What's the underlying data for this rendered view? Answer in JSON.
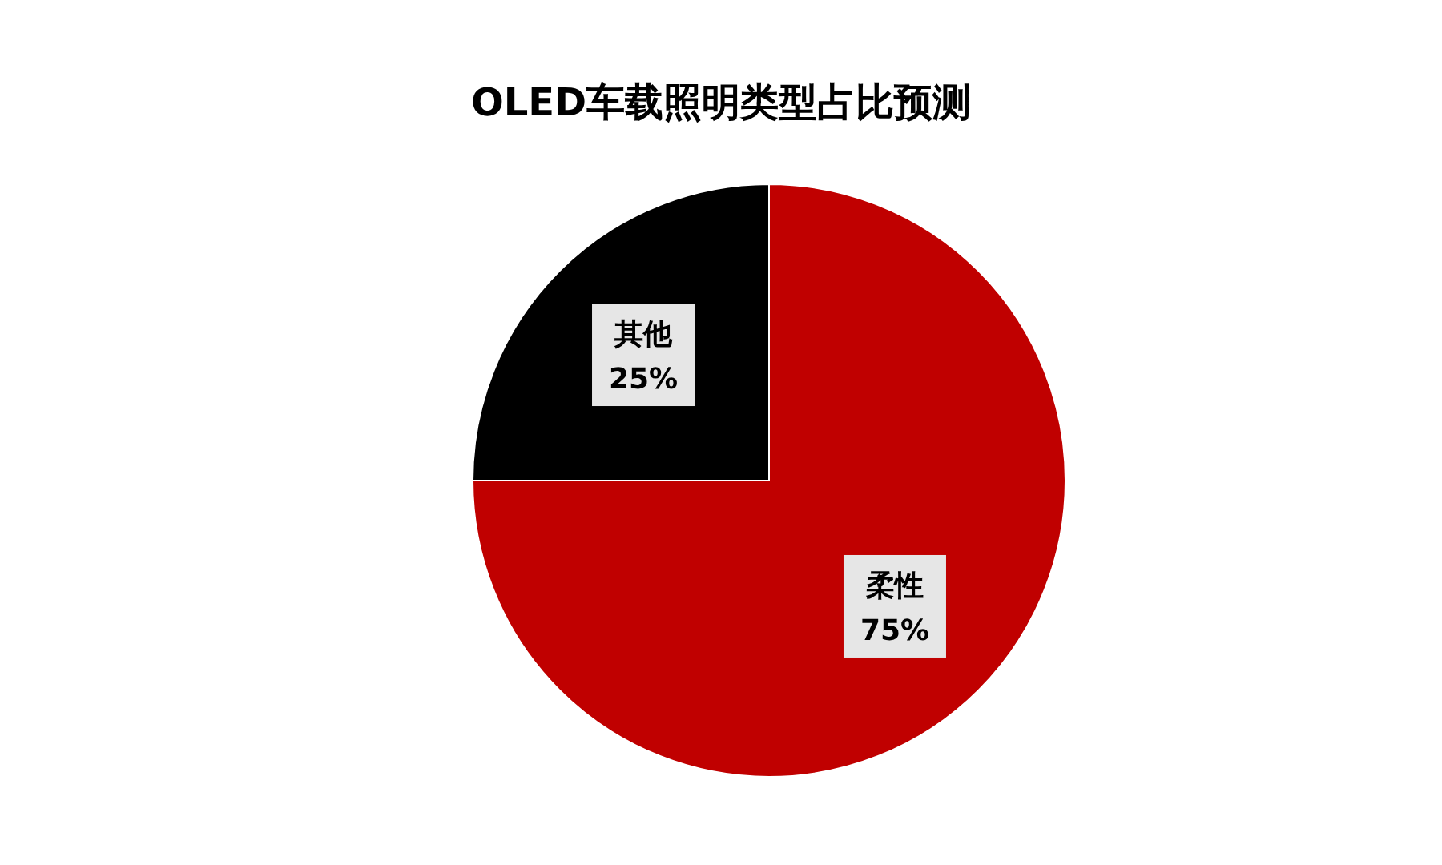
{
  "chart_data": {
    "type": "pie",
    "title": "OLED车载照明类型占比预测",
    "categories": [
      "柔性",
      "其他"
    ],
    "values": [
      75,
      25
    ],
    "colors": [
      "#c00000",
      "#000000"
    ],
    "value_labels": [
      "75%",
      "25%"
    ],
    "legend": false
  }
}
